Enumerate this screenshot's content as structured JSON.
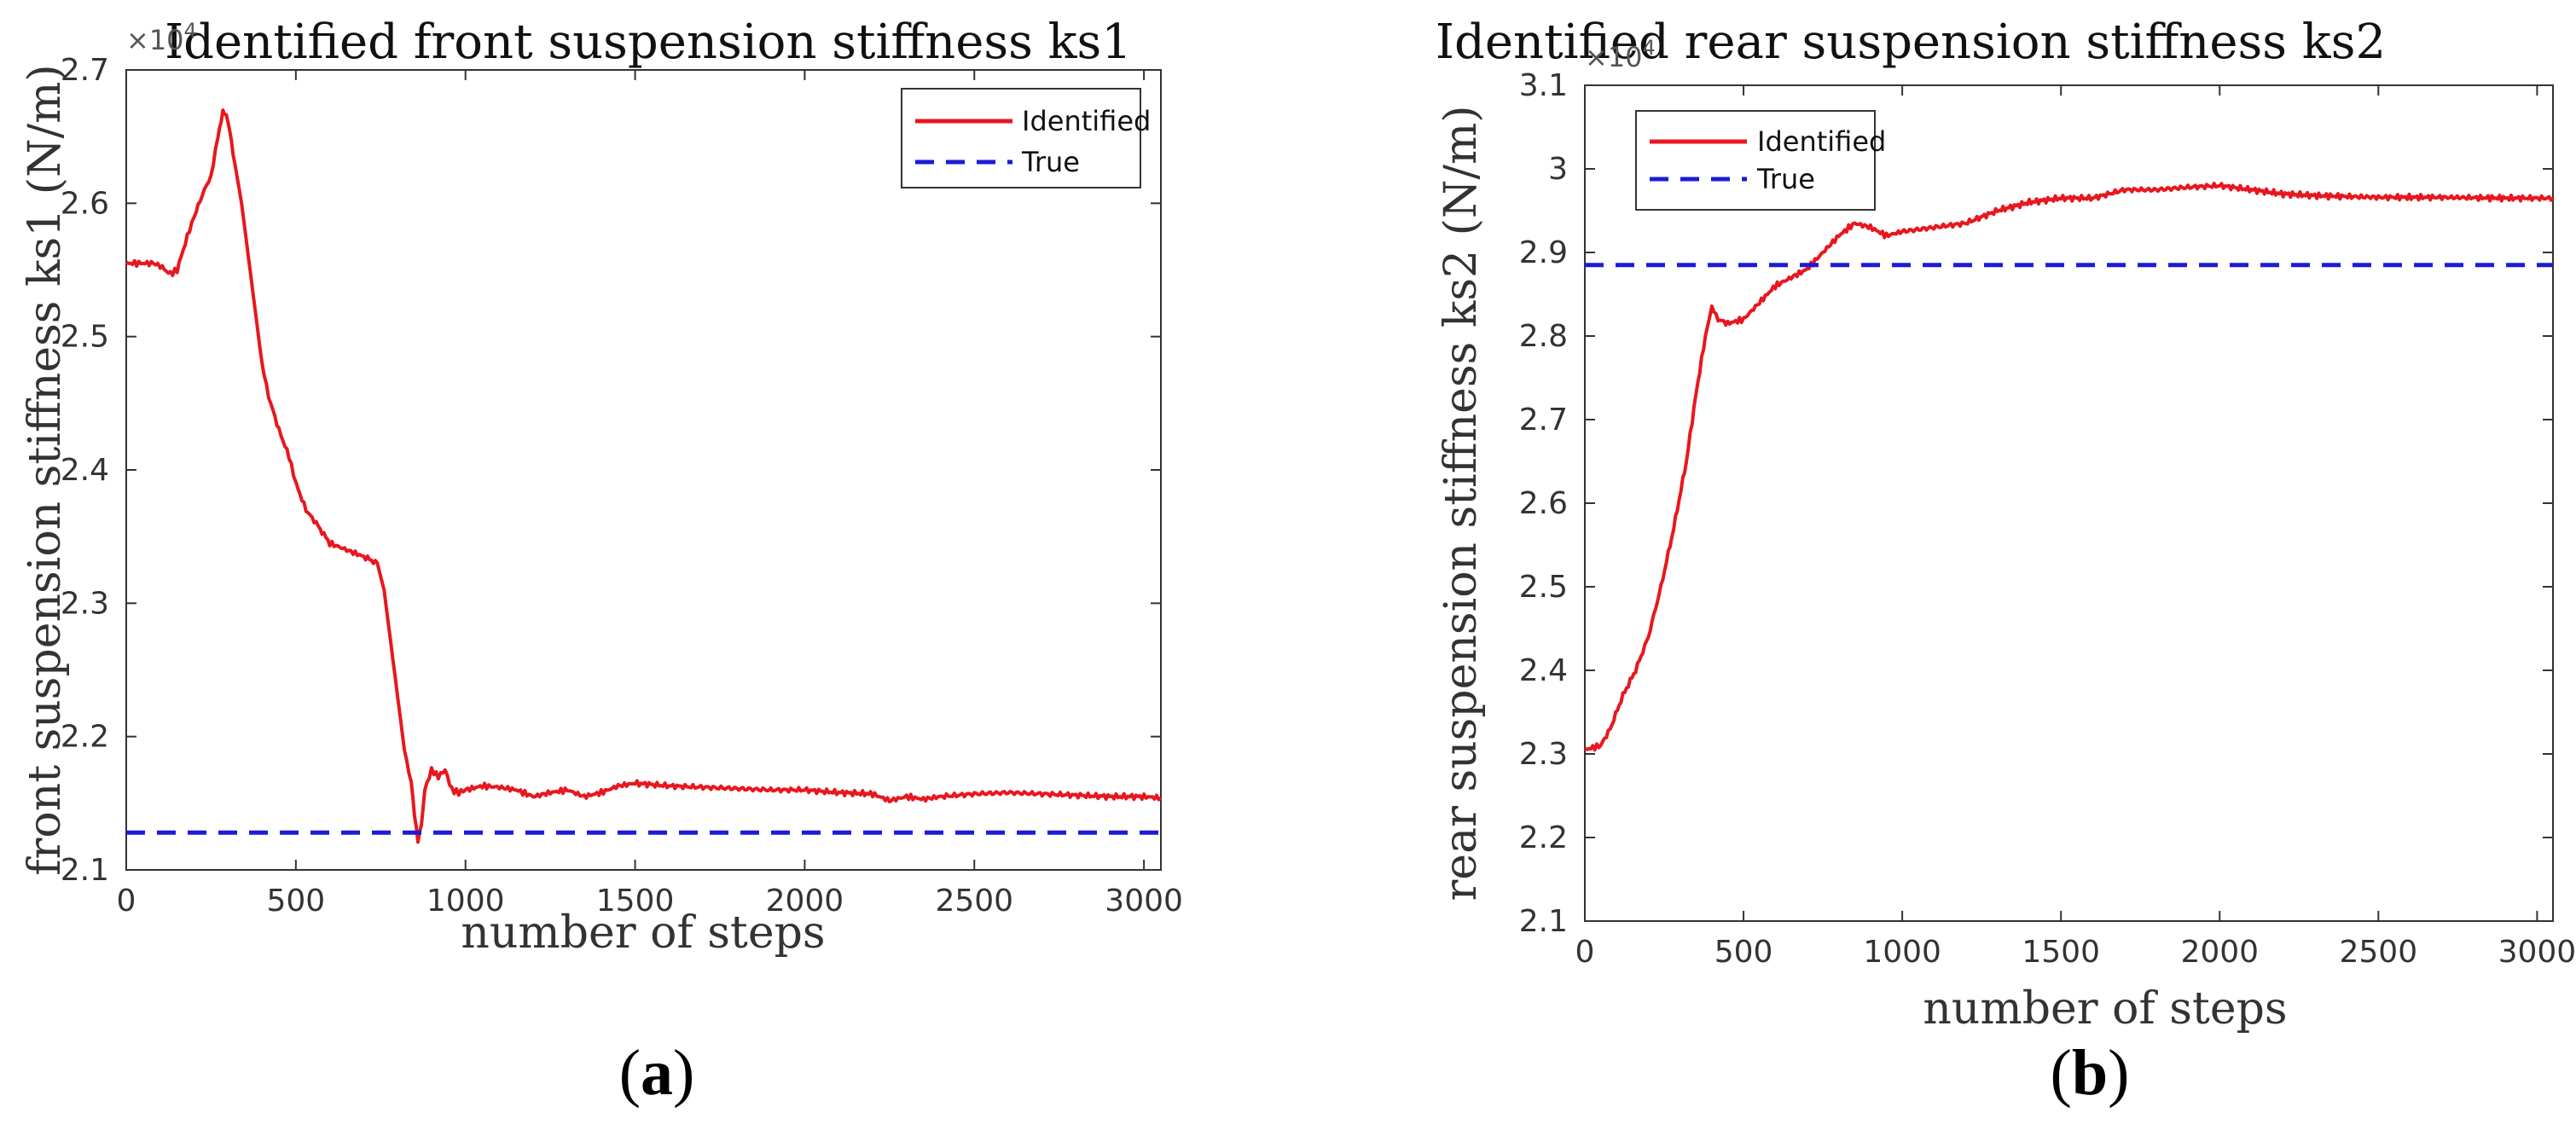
{
  "chart_data": [
    {
      "type": "line",
      "title": "Identified front suspension stiffness ks1",
      "xlabel": "number of steps",
      "ylabel": "front suspension stiffness ks1 (N/m)",
      "y_exponent": "×10",
      "y_exponent_power": "4",
      "xlim": [
        0,
        3050
      ],
      "ylim": [
        2.1,
        2.7
      ],
      "xticks": [
        0,
        500,
        1000,
        1500,
        2000,
        2500,
        3000
      ],
      "yticks": [
        2.1,
        2.2,
        2.3,
        2.4,
        2.5,
        2.6,
        2.7
      ],
      "xtick_labels": [
        "0",
        "500",
        "1000",
        "1500",
        "2000",
        "2500",
        "3000"
      ],
      "ytick_labels": [
        "2.1",
        "2.2",
        "2.3",
        "2.4",
        "2.5",
        "2.6",
        "2.7"
      ],
      "legend_position": "top-right",
      "panel_letter": "a",
      "series": [
        {
          "name": "Identified",
          "color": "#e8171f",
          "style": "solid",
          "x": [
            0,
            80,
            100,
            130,
            150,
            180,
            200,
            230,
            250,
            270,
            285,
            295,
            305,
            320,
            340,
            360,
            380,
            400,
            420,
            450,
            480,
            500,
            530,
            560,
            600,
            650,
            700,
            740,
            760,
            780,
            800,
            820,
            840,
            850,
            860,
            870,
            880,
            900,
            920,
            940,
            960,
            980,
            1000,
            1050,
            1100,
            1150,
            1200,
            1250,
            1300,
            1350,
            1400,
            1450,
            1500,
            1600,
            1700,
            1800,
            1900,
            2000,
            2100,
            2200,
            2250,
            2300,
            2350,
            2400,
            2500,
            2600,
            2700,
            2800,
            2900,
            3000,
            3050
          ],
          "values": [
            2.555,
            2.555,
            2.553,
            2.547,
            2.55,
            2.575,
            2.59,
            2.61,
            2.62,
            2.65,
            2.668,
            2.665,
            2.655,
            2.63,
            2.6,
            2.56,
            2.52,
            2.48,
            2.455,
            2.43,
            2.41,
            2.39,
            2.37,
            2.36,
            2.345,
            2.34,
            2.335,
            2.33,
            2.31,
            2.27,
            2.23,
            2.19,
            2.165,
            2.14,
            2.122,
            2.135,
            2.16,
            2.175,
            2.17,
            2.175,
            2.16,
            2.158,
            2.16,
            2.163,
            2.162,
            2.16,
            2.155,
            2.158,
            2.16,
            2.155,
            2.158,
            2.163,
            2.165,
            2.163,
            2.162,
            2.161,
            2.16,
            2.16,
            2.158,
            2.157,
            2.152,
            2.155,
            2.153,
            2.155,
            2.157,
            2.158,
            2.157,
            2.156,
            2.155,
            2.155,
            2.154
          ]
        },
        {
          "name": "True",
          "color": "#1c1cd6",
          "style": "dashed",
          "x": [
            0,
            3050
          ],
          "values": [
            2.128,
            2.128
          ]
        }
      ]
    },
    {
      "type": "line",
      "title": "Identified rear suspension stiffness ks2",
      "xlabel": "number of steps",
      "ylabel": "rear suspension stiffness ks2 (N/m)",
      "y_exponent": "×10",
      "y_exponent_power": "4",
      "xlim": [
        0,
        3050
      ],
      "ylim": [
        2.1,
        3.1
      ],
      "xticks": [
        0,
        500,
        1000,
        1500,
        2000,
        2500,
        3000
      ],
      "yticks": [
        2.1,
        2.2,
        2.3,
        2.4,
        2.5,
        2.6,
        2.7,
        2.8,
        2.9,
        3.0,
        3.1
      ],
      "xtick_labels": [
        "0",
        "500",
        "1000",
        "1500",
        "2000",
        "2500",
        "3000"
      ],
      "ytick_labels": [
        "2.1",
        "2.2",
        "2.3",
        "2.4",
        "2.5",
        "2.6",
        "2.7",
        "2.8",
        "2.9",
        "3",
        "3.1"
      ],
      "legend_position": "top-left",
      "panel_letter": "b",
      "series": [
        {
          "name": "Identified",
          "color": "#e8171f",
          "style": "solid",
          "x": [
            0,
            50,
            80,
            120,
            160,
            200,
            240,
            280,
            320,
            350,
            380,
            400,
            420,
            450,
            500,
            550,
            600,
            650,
            700,
            750,
            800,
            850,
            900,
            950,
            1000,
            1100,
            1200,
            1300,
            1400,
            1500,
            1600,
            1700,
            1800,
            1900,
            2000,
            2100,
            2200,
            2300,
            2500,
            2700,
            2900,
            3050
          ],
          "values": [
            2.305,
            2.31,
            2.33,
            2.37,
            2.4,
            2.44,
            2.5,
            2.57,
            2.65,
            2.73,
            2.8,
            2.835,
            2.82,
            2.815,
            2.82,
            2.84,
            2.86,
            2.87,
            2.88,
            2.9,
            2.92,
            2.935,
            2.93,
            2.92,
            2.925,
            2.93,
            2.935,
            2.95,
            2.96,
            2.965,
            2.965,
            2.975,
            2.975,
            2.978,
            2.98,
            2.975,
            2.97,
            2.968,
            2.966,
            2.966,
            2.965,
            2.965
          ]
        },
        {
          "name": "True",
          "color": "#1c1cd6",
          "style": "dashed",
          "x": [
            0,
            3050
          ],
          "values": [
            2.885,
            2.885
          ]
        }
      ]
    }
  ]
}
